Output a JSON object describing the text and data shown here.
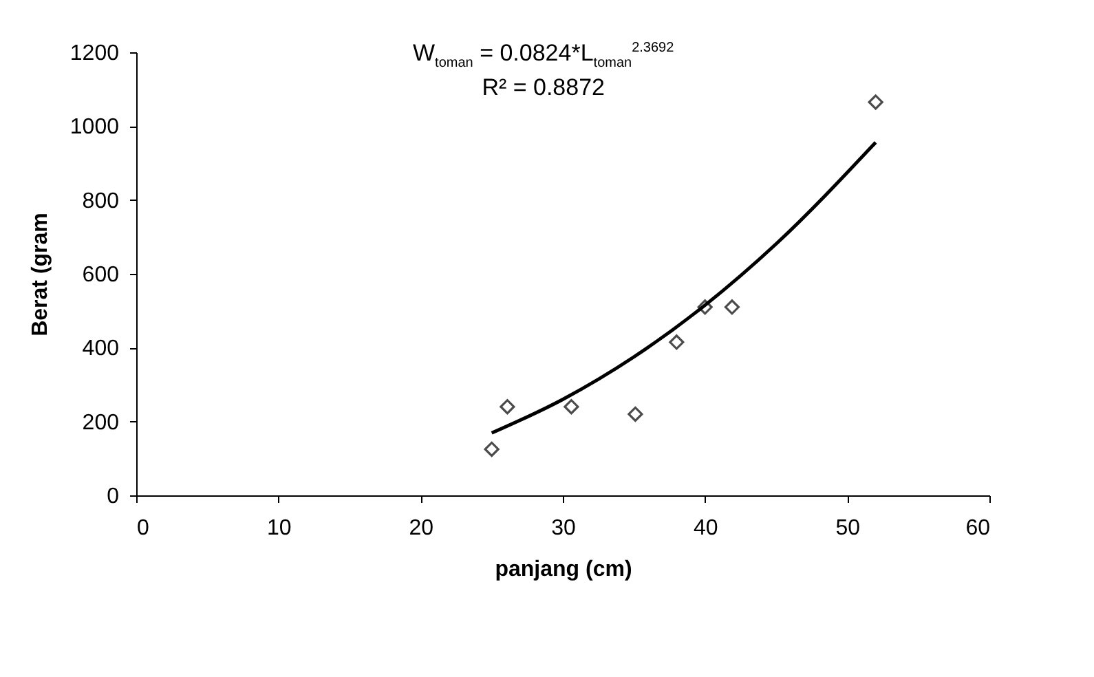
{
  "chart_data": {
    "type": "scatter",
    "xlabel": "panjang (cm)",
    "ylabel": "Berat (gram",
    "annotations": [
      "W$_{toman}$ = 0.0824*L$_{toman}$$^{2.3692}$",
      "R² = 0.8872"
    ],
    "xlim": [
      0,
      60
    ],
    "xticks": [
      0,
      10,
      20,
      30,
      40,
      50,
      60
    ],
    "ylim": [
      0,
      1200
    ],
    "yticks": [
      0,
      200,
      400,
      600,
      800,
      1000,
      1200
    ],
    "grid": false,
    "series": [
      {
        "marker": "diamond",
        "color": "#000000",
        "x": [
          25,
          26.1,
          30.6,
          35.1,
          38,
          40,
          41.9,
          52
        ],
        "values": [
          125,
          240,
          240,
          220,
          415,
          510,
          510,
          1065
        ]
      },
      {
        "type": "line",
        "color": "#000000",
        "x": [
          25,
          30,
          35,
          40,
          45,
          52
        ],
        "values": [
          169,
          260,
          375,
          515,
          681,
          956
        ]
      }
    ]
  }
}
